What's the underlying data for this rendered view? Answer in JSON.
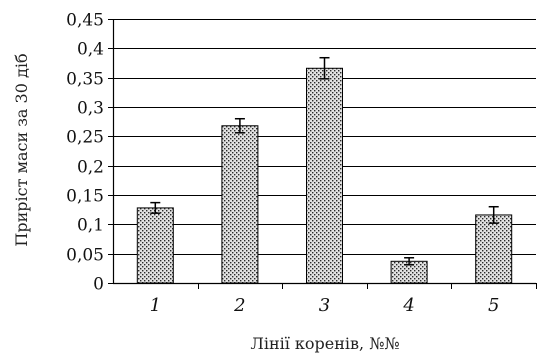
{
  "chart_data": {
    "type": "bar",
    "categories": [
      "1",
      "2",
      "3",
      "4",
      "5"
    ],
    "values": [
      0.128,
      0.268,
      0.366,
      0.037,
      0.116
    ],
    "error": [
      0.009,
      0.012,
      0.018,
      0.006,
      0.014
    ],
    "xlabel": "Лінії коренів, №№",
    "ylabel": "Приріст маси за 30 діб",
    "ylim": [
      0,
      0.45
    ],
    "yticks": [
      0,
      0.05,
      0.1,
      0.15,
      0.2,
      0.25,
      0.3,
      0.35,
      0.4,
      0.45
    ],
    "ytick_labels": [
      "0",
      "0,05",
      "0,1",
      "0,15",
      "0,2",
      "0,25",
      "0,3",
      "0,35",
      "0,4",
      "0,45"
    ],
    "grid": true,
    "bar_fill": "crosshatch",
    "colors": {
      "bar_light": "#d9d9d9",
      "bar_dark": "#333333",
      "axis": "#000000",
      "grid": "#000000"
    }
  }
}
